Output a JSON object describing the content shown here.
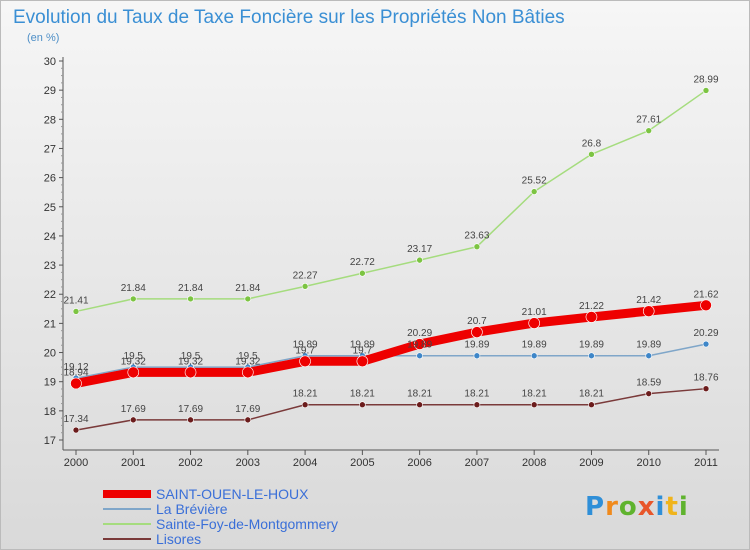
{
  "title": "Evolution du Taux de Taxe Foncière sur les Propriétés Non Bâties",
  "unit": "(en %)",
  "brand": {
    "letters": [
      "P",
      "r",
      "o",
      "x",
      "i",
      "t",
      "i"
    ],
    "colors": [
      "#2f8fd8",
      "#f08a1c",
      "#5fb32e",
      "#e8562a",
      "#2f8fd8",
      "#f0b41c",
      "#5fb32e"
    ]
  },
  "chart_data": {
    "type": "line",
    "title": "Evolution du Taux de Taxe Foncière sur les Propriétés Non Bâties",
    "ylabel": "(en %)",
    "xlabel": "",
    "ylim": [
      17,
      30
    ],
    "yticks": [
      17,
      18,
      19,
      20,
      21,
      22,
      23,
      24,
      25,
      26,
      27,
      28,
      29,
      30
    ],
    "x": [
      2000,
      2001,
      2002,
      2003,
      2004,
      2005,
      2006,
      2007,
      2008,
      2009,
      2010,
      2011
    ],
    "grid": false,
    "legend": "bottom-left",
    "series": [
      {
        "name": "SAINT-OUEN-LE-HOUX",
        "color": "#ee0000",
        "width": 9,
        "dot": "#ee0000",
        "label_dy": -8,
        "values": [
          18.94,
          19.32,
          19.32,
          19.32,
          19.7,
          19.7,
          20.29,
          20.7,
          21.01,
          21.22,
          21.42,
          21.62
        ],
        "labels": [
          "18.94",
          "19.32",
          "19.32",
          "19.32",
          "19.7",
          "19.7",
          "20.29",
          "20.7",
          "21.01",
          "21.22",
          "21.42",
          "21.62"
        ]
      },
      {
        "name": "La Brévière",
        "color": "#7fa6c9",
        "width": 1.5,
        "dot": "#3e86c8",
        "label_dy": -8,
        "values": [
          19.12,
          19.5,
          19.5,
          19.5,
          19.89,
          19.89,
          19.89,
          19.89,
          19.89,
          19.89,
          19.89,
          20.29
        ],
        "labels": [
          "19.12",
          "19.5",
          "19.5",
          "19.5",
          "19.89",
          "19.89",
          "19.89",
          "19.89",
          "19.89",
          "19.89",
          "19.89",
          "20.29"
        ]
      },
      {
        "name": "Sainte-Foy-de-Montgommery",
        "color": "#a5dc7e",
        "width": 1.5,
        "dot": "#7cc442",
        "label_dy": -8,
        "values": [
          21.41,
          21.84,
          21.84,
          21.84,
          22.27,
          22.72,
          23.17,
          23.63,
          25.52,
          26.8,
          27.61,
          28.99
        ],
        "labels": [
          "21.41",
          "21.84",
          "21.84",
          "21.84",
          "22.27",
          "22.72",
          "23.17",
          "23.63",
          "25.52",
          "26.8",
          "27.61",
          "28.99"
        ]
      },
      {
        "name": "Lisores",
        "color": "#7a3a3a",
        "width": 1.5,
        "dot": "#6b1c1c",
        "label_dy": -8,
        "values": [
          17.34,
          17.69,
          17.69,
          17.69,
          18.21,
          18.21,
          18.21,
          18.21,
          18.21,
          18.21,
          18.59,
          18.76
        ],
        "labels": [
          "17.34",
          "17.69",
          "17.69",
          "17.69",
          "18.21",
          "18.21",
          "18.21",
          "18.21",
          "18.21",
          "18.21",
          "18.59",
          "18.76"
        ]
      }
    ]
  }
}
